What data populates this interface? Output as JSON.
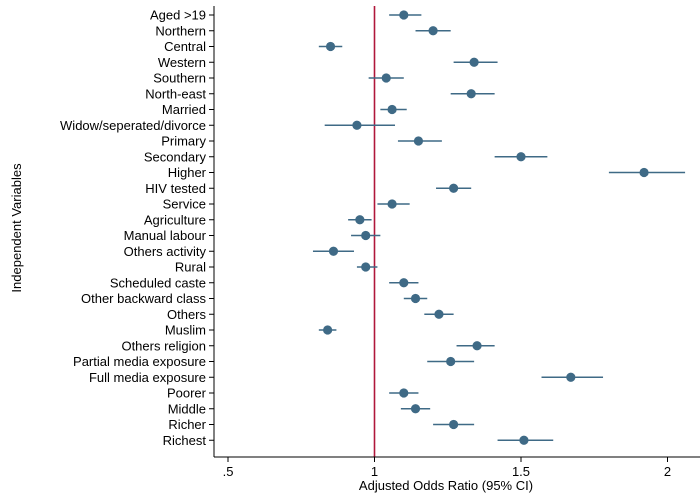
{
  "chart_data": {
    "type": "scatter",
    "subtype": "forest-plot",
    "xlabel": "Adjusted Odds Ratio (95% CI)",
    "ylabel": "Independent Variables",
    "xlim": [
      0.5,
      2.1
    ],
    "xticks": [
      0.5,
      1,
      1.5,
      2
    ],
    "xtick_labels": [
      ".5",
      "1",
      "1.5",
      "2"
    ],
    "reference_line": 1,
    "reference_color": "#b0173b",
    "point_color": "#3f6a86",
    "grid": false,
    "rows": [
      {
        "label": "Aged >19",
        "or": 1.1,
        "lo": 1.05,
        "hi": 1.16
      },
      {
        "label": "Northern",
        "or": 1.2,
        "lo": 1.14,
        "hi": 1.26
      },
      {
        "label": "Central",
        "or": 0.85,
        "lo": 0.81,
        "hi": 0.89
      },
      {
        "label": "Western",
        "or": 1.34,
        "lo": 1.27,
        "hi": 1.42
      },
      {
        "label": "Southern",
        "or": 1.04,
        "lo": 0.98,
        "hi": 1.1
      },
      {
        "label": "North-east",
        "or": 1.33,
        "lo": 1.26,
        "hi": 1.41
      },
      {
        "label": "Married",
        "or": 1.06,
        "lo": 1.02,
        "hi": 1.11
      },
      {
        "label": "Widow/seperated/divorce",
        "or": 0.94,
        "lo": 0.83,
        "hi": 1.07
      },
      {
        "label": "Primary",
        "or": 1.15,
        "lo": 1.08,
        "hi": 1.23
      },
      {
        "label": "Secondary",
        "or": 1.5,
        "lo": 1.41,
        "hi": 1.59
      },
      {
        "label": "Higher",
        "or": 1.92,
        "lo": 1.8,
        "hi": 2.06
      },
      {
        "label": "HIV tested",
        "or": 1.27,
        "lo": 1.21,
        "hi": 1.33
      },
      {
        "label": "Service",
        "or": 1.06,
        "lo": 1.01,
        "hi": 1.12
      },
      {
        "label": "Agriculture",
        "or": 0.95,
        "lo": 0.91,
        "hi": 0.99
      },
      {
        "label": "Manual labour",
        "or": 0.97,
        "lo": 0.92,
        "hi": 1.02
      },
      {
        "label": "Others activity",
        "or": 0.86,
        "lo": 0.79,
        "hi": 0.93
      },
      {
        "label": "Rural",
        "or": 0.97,
        "lo": 0.94,
        "hi": 1.01
      },
      {
        "label": "Scheduled caste",
        "or": 1.1,
        "lo": 1.05,
        "hi": 1.15
      },
      {
        "label": "Other backward class",
        "or": 1.14,
        "lo": 1.1,
        "hi": 1.18
      },
      {
        "label": "Others",
        "or": 1.22,
        "lo": 1.17,
        "hi": 1.27
      },
      {
        "label": "Muslim",
        "or": 0.84,
        "lo": 0.81,
        "hi": 0.87
      },
      {
        "label": "Others religion",
        "or": 1.35,
        "lo": 1.28,
        "hi": 1.41
      },
      {
        "label": "Partial media exposure",
        "or": 1.26,
        "lo": 1.18,
        "hi": 1.34
      },
      {
        "label": "Full media exposure",
        "or": 1.67,
        "lo": 1.57,
        "hi": 1.78
      },
      {
        "label": "Poorer",
        "or": 1.1,
        "lo": 1.05,
        "hi": 1.15
      },
      {
        "label": "Middle",
        "or": 1.14,
        "lo": 1.09,
        "hi": 1.19
      },
      {
        "label": "Richer",
        "or": 1.27,
        "lo": 1.2,
        "hi": 1.34
      },
      {
        "label": "Richest",
        "or": 1.51,
        "lo": 1.42,
        "hi": 1.61
      }
    ]
  }
}
